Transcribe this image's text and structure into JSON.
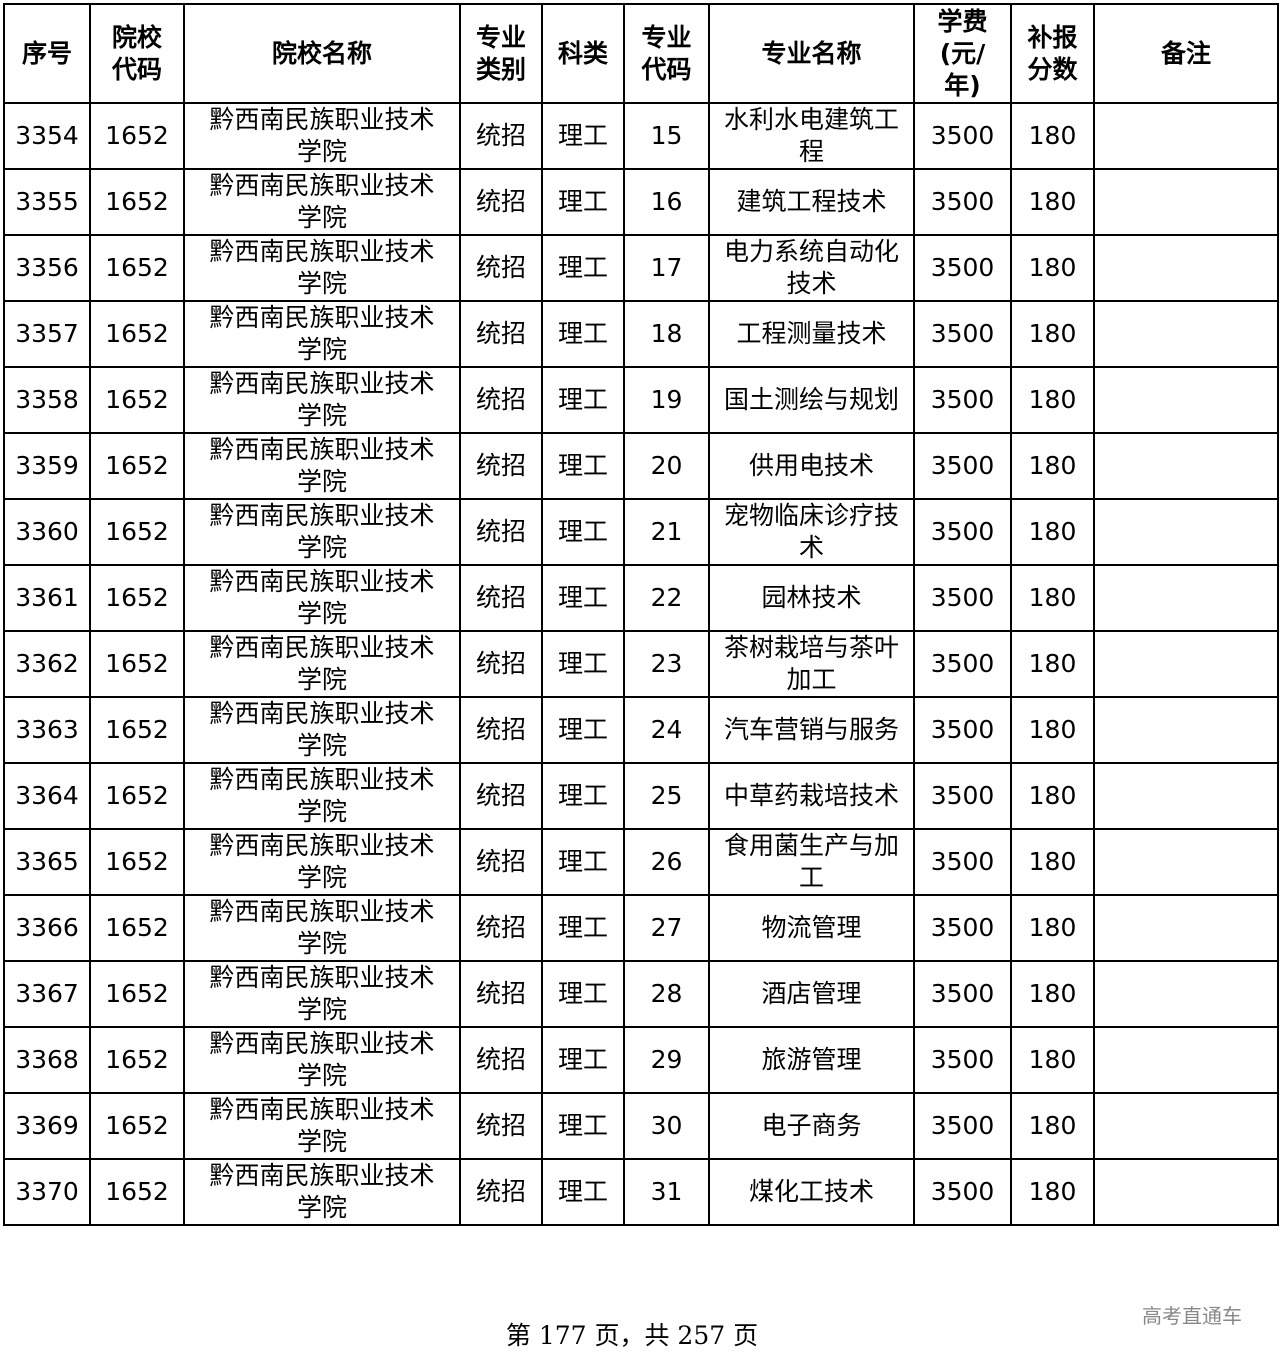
{
  "table": {
    "headers": [
      "序号",
      "院校代码",
      "院校名称",
      "专业类别",
      "科类",
      "专业代码",
      "专业名称",
      "学费(元/年)",
      "补报分数",
      "备注"
    ],
    "rows": [
      [
        "3354",
        "1652",
        "黔西南民族职业技术学院",
        "统招",
        "理工",
        "15",
        "水利水电建筑工程",
        "3500",
        "180",
        ""
      ],
      [
        "3355",
        "1652",
        "黔西南民族职业技术学院",
        "统招",
        "理工",
        "16",
        "建筑工程技术",
        "3500",
        "180",
        ""
      ],
      [
        "3356",
        "1652",
        "黔西南民族职业技术学院",
        "统招",
        "理工",
        "17",
        "电力系统自动化技术",
        "3500",
        "180",
        ""
      ],
      [
        "3357",
        "1652",
        "黔西南民族职业技术学院",
        "统招",
        "理工",
        "18",
        "工程测量技术",
        "3500",
        "180",
        ""
      ],
      [
        "3358",
        "1652",
        "黔西南民族职业技术学院",
        "统招",
        "理工",
        "19",
        "国土测绘与规划",
        "3500",
        "180",
        ""
      ],
      [
        "3359",
        "1652",
        "黔西南民族职业技术学院",
        "统招",
        "理工",
        "20",
        "供用电技术",
        "3500",
        "180",
        ""
      ],
      [
        "3360",
        "1652",
        "黔西南民族职业技术学院",
        "统招",
        "理工",
        "21",
        "宠物临床诊疗技术",
        "3500",
        "180",
        ""
      ],
      [
        "3361",
        "1652",
        "黔西南民族职业技术学院",
        "统招",
        "理工",
        "22",
        "园林技术",
        "3500",
        "180",
        ""
      ],
      [
        "3362",
        "1652",
        "黔西南民族职业技术学院",
        "统招",
        "理工",
        "23",
        "茶树栽培与茶叶加工",
        "3500",
        "180",
        ""
      ],
      [
        "3363",
        "1652",
        "黔西南民族职业技术学院",
        "统招",
        "理工",
        "24",
        "汽车营销与服务",
        "3500",
        "180",
        ""
      ],
      [
        "3364",
        "1652",
        "黔西南民族职业技术学院",
        "统招",
        "理工",
        "25",
        "中草药栽培技术",
        "3500",
        "180",
        ""
      ],
      [
        "3365",
        "1652",
        "黔西南民族职业技术学院",
        "统招",
        "理工",
        "26",
        "食用菌生产与加工",
        "3500",
        "180",
        ""
      ],
      [
        "3366",
        "1652",
        "黔西南民族职业技术学院",
        "统招",
        "理工",
        "27",
        "物流管理",
        "3500",
        "180",
        ""
      ],
      [
        "3367",
        "1652",
        "黔西南民族职业技术学院",
        "统招",
        "理工",
        "28",
        "酒店管理",
        "3500",
        "180",
        ""
      ],
      [
        "3368",
        "1652",
        "黔西南民族职业技术学院",
        "统招",
        "理工",
        "29",
        "旅游管理",
        "3500",
        "180",
        ""
      ],
      [
        "3369",
        "1652",
        "黔西南民族职业技术学院",
        "统招",
        "理工",
        "30",
        "电子商务",
        "3500",
        "180",
        ""
      ],
      [
        "3370",
        "1652",
        "黔西南民族职业技术学院",
        "统招",
        "理工",
        "31",
        "煤化工技术",
        "3500",
        "180",
        ""
      ]
    ]
  },
  "footer": {
    "page_text": "第 177 页，共 257 页"
  },
  "watermark": "高考直通车"
}
